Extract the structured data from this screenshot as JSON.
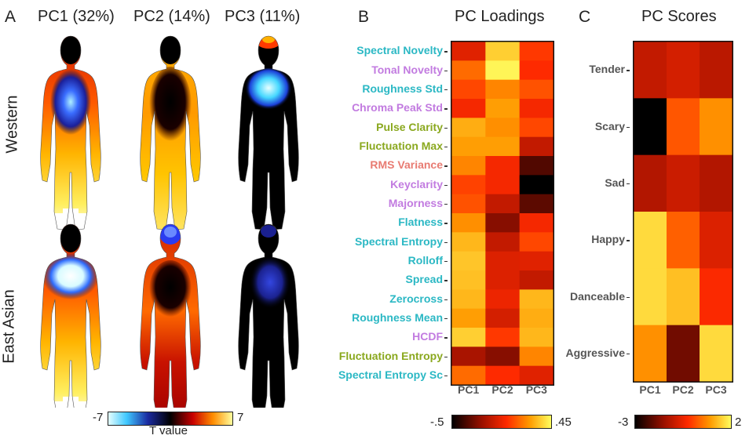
{
  "panel_a": {
    "letter": "A",
    "columns": [
      "PC1 (32%)",
      "PC2 (14%)",
      "PC3 (11%)"
    ],
    "rows": [
      "Western",
      "East Asian"
    ],
    "colorbar": {
      "min": "-7",
      "max": "7",
      "label": "T value"
    }
  },
  "panel_b": {
    "letter": "B",
    "title": "PC Loadings",
    "colorbar": {
      "min": "-.5",
      "max": ".45"
    }
  },
  "panel_c": {
    "letter": "C",
    "title": "PC Scores",
    "colorbar": {
      "min": "-3",
      "max": "2"
    }
  },
  "colors": {
    "cyan_label": "#2bb8c4",
    "violet_label": "#c27be0",
    "olive_label": "#8aa81e",
    "salmon_label": "#e87b72"
  },
  "chart_data": [
    {
      "type": "heatmap",
      "title": "PC Loadings",
      "columns": [
        "PC1",
        "PC2",
        "PC3"
      ],
      "rows": [
        {
          "label": "Spectral Novelty",
          "group": "cyan",
          "values": [
            -0.05,
            0.35,
            0.05
          ]
        },
        {
          "label": "Tonal Novelty",
          "group": "violet",
          "values": [
            0.15,
            0.43,
            0.02
          ]
        },
        {
          "label": "Roughness Std",
          "group": "cyan",
          "values": [
            0.08,
            0.2,
            0.1
          ]
        },
        {
          "label": "Chroma Peak Std",
          "group": "violet",
          "values": [
            0.0,
            0.25,
            0.0
          ]
        },
        {
          "label": "Pulse Clarity",
          "group": "olive",
          "values": [
            0.28,
            0.22,
            0.08
          ]
        },
        {
          "label": "Fluctuation Max",
          "group": "olive",
          "values": [
            0.25,
            0.25,
            -0.12
          ]
        },
        {
          "label": "RMS Variance",
          "group": "salmon",
          "values": [
            0.2,
            0.0,
            -0.35
          ]
        },
        {
          "label": "Keyclarity",
          "group": "violet",
          "values": [
            0.07,
            0.0,
            -0.5
          ]
        },
        {
          "label": "Majorness",
          "group": "violet",
          "values": [
            0.1,
            -0.12,
            -0.33
          ]
        },
        {
          "label": "Flatness",
          "group": "cyan",
          "values": [
            0.22,
            -0.25,
            0.0
          ]
        },
        {
          "label": "Spectral Entropy",
          "group": "cyan",
          "values": [
            0.3,
            -0.12,
            0.08
          ]
        },
        {
          "label": "Rolloff",
          "group": "cyan",
          "values": [
            0.33,
            -0.06,
            -0.05
          ]
        },
        {
          "label": "Spread",
          "group": "cyan",
          "values": [
            0.32,
            -0.06,
            -0.12
          ]
        },
        {
          "label": "Zerocross",
          "group": "cyan",
          "values": [
            0.3,
            -0.02,
            0.3
          ]
        },
        {
          "label": "Roughness Mean",
          "group": "cyan",
          "values": [
            0.25,
            -0.08,
            0.28
          ]
        },
        {
          "label": "HCDF",
          "group": "violet",
          "values": [
            0.35,
            0.05,
            0.3
          ]
        },
        {
          "label": "Fluctuation Entropy",
          "group": "olive",
          "values": [
            -0.18,
            -0.25,
            0.2
          ]
        },
        {
          "label": "Spectral Entropy Sc",
          "group": "cyan",
          "values": [
            0.15,
            0.02,
            -0.05
          ]
        }
      ],
      "range": [
        -0.5,
        0.45
      ]
    },
    {
      "type": "heatmap",
      "title": "PC Scores",
      "columns": [
        "PC1",
        "PC2",
        "PC3"
      ],
      "rows": [
        {
          "label": "Tender",
          "values": [
            -1.0,
            -0.8,
            -1.1
          ]
        },
        {
          "label": "Scary",
          "values": [
            -3.0,
            0.2,
            0.8
          ]
        },
        {
          "label": "Sad",
          "values": [
            -1.2,
            -0.9,
            -1.2
          ]
        },
        {
          "label": "Happy",
          "values": [
            1.6,
            0.3,
            -0.7
          ]
        },
        {
          "label": "Danceable",
          "values": [
            1.6,
            1.3,
            -0.3
          ]
        },
        {
          "label": "Aggressive",
          "values": [
            0.8,
            -1.9,
            1.6
          ]
        }
      ],
      "range": [
        -3,
        2
      ]
    }
  ]
}
